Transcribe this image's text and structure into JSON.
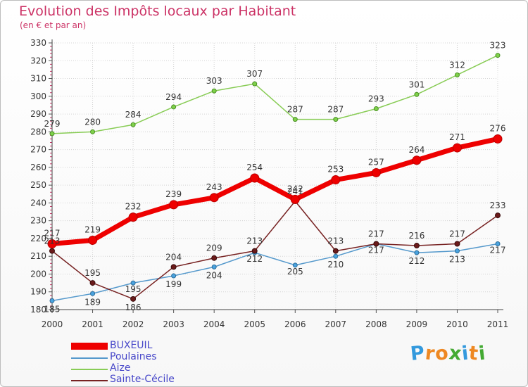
{
  "title": "Evolution des Impôts locaux par Habitant",
  "subtitle": "(en € et par an)",
  "chart_data": {
    "type": "line",
    "title": "Evolution des Impôts locaux par Habitant",
    "subtitle": "(en € et par an)",
    "xlabel": "",
    "ylabel": "",
    "categories": [
      "2000",
      "2001",
      "2002",
      "2003",
      "2004",
      "2005",
      "2006",
      "2007",
      "2008",
      "2009",
      "2010",
      "2011"
    ],
    "ylim": [
      180,
      330
    ],
    "yticks": [
      180,
      190,
      200,
      210,
      220,
      230,
      240,
      250,
      260,
      270,
      280,
      290,
      300,
      310,
      320,
      330
    ],
    "grid": true,
    "legend_position": "bottom-left",
    "series": [
      {
        "name": "Poulaines",
        "color": "#5599cc",
        "values": [
          185,
          189,
          195,
          199,
          204,
          212,
          205,
          210,
          217,
          212,
          213,
          217
        ],
        "labels": [
          "185",
          "189",
          "195",
          "199",
          "204",
          "212",
          "205",
          "210",
          "217",
          "212",
          "213",
          "217"
        ]
      },
      {
        "name": "Aize",
        "color": "#88cc55",
        "values": [
          279,
          280,
          284,
          294,
          303,
          307,
          287,
          287,
          293,
          301,
          312,
          323
        ],
        "labels": [
          "279",
          "280",
          "284",
          "294",
          "303",
          "307",
          "287",
          "287",
          "293",
          "301",
          "312",
          "323"
        ]
      },
      {
        "name": "Sainte-Cécile",
        "color": "#772222",
        "values": [
          213,
          195,
          186,
          204,
          209,
          213,
          241,
          213,
          217,
          216,
          217,
          233
        ],
        "labels": [
          "213",
          "195",
          "186",
          "204",
          "209",
          "213",
          "241",
          "213",
          "217",
          "216",
          "217",
          "233"
        ]
      },
      {
        "name": "BUXEUIL",
        "color": "#ee0000",
        "values": [
          217,
          219,
          232,
          239,
          243,
          254,
          242,
          253,
          257,
          264,
          271,
          276
        ],
        "labels": [
          "217",
          "219",
          "232",
          "239",
          "243",
          "254",
          "242",
          "253",
          "257",
          "264",
          "271",
          "276"
        ]
      }
    ],
    "legend": [
      "BUXEUIL",
      "Poulaines",
      "Aize",
      "Sainte-Cécile"
    ]
  },
  "logo": {
    "letters": [
      "P",
      "r",
      "o",
      "x",
      "i",
      "t",
      "i"
    ],
    "colors": [
      "#3399dd",
      "#ee8822",
      "#ee8822",
      "#44aa33",
      "#3399dd",
      "#ee8822",
      "#44aa33"
    ]
  }
}
